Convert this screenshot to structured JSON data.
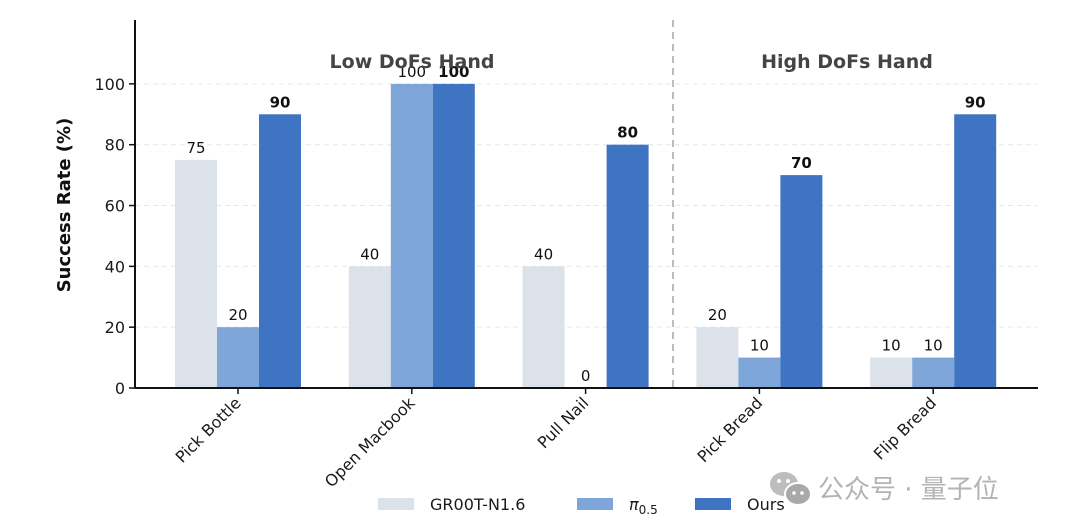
{
  "chart_data": {
    "type": "bar",
    "title": "",
    "xlabel": "",
    "ylabel": "Success Rate (%)",
    "ylim": [
      0,
      121
    ],
    "yticks": [
      0,
      20,
      40,
      60,
      80,
      100
    ],
    "grid": "horizontal-dashed",
    "categories": [
      "Pick Bottle",
      "Open Macbook",
      "Pull Nail",
      "Pick Bread",
      "Flip Bread"
    ],
    "series": [
      {
        "name": "GR00T-N1.6",
        "color": "#dce2e9",
        "values": [
          75,
          40,
          40,
          20,
          10
        ],
        "label_bold": false
      },
      {
        "name": "π0.5",
        "name_base": "π",
        "name_sub": "0.5",
        "color": "#7ea6d8",
        "values": [
          20,
          100,
          0,
          10,
          10
        ],
        "label_bold": false
      },
      {
        "name": "Ours",
        "color": "#3e74c2",
        "values": [
          90,
          100,
          80,
          70,
          90
        ],
        "label_bold": true
      }
    ],
    "groups": [
      {
        "title": "Low DoFs Hand",
        "categories": [
          "Pick Bottle",
          "Open Macbook",
          "Pull Nail"
        ]
      },
      {
        "title": "High DoFs Hand",
        "categories": [
          "Pick Bread",
          "Flip Bread"
        ]
      }
    ],
    "legend_position": "bottom-center"
  },
  "watermark": {
    "text": "公众号 · 量子位"
  }
}
